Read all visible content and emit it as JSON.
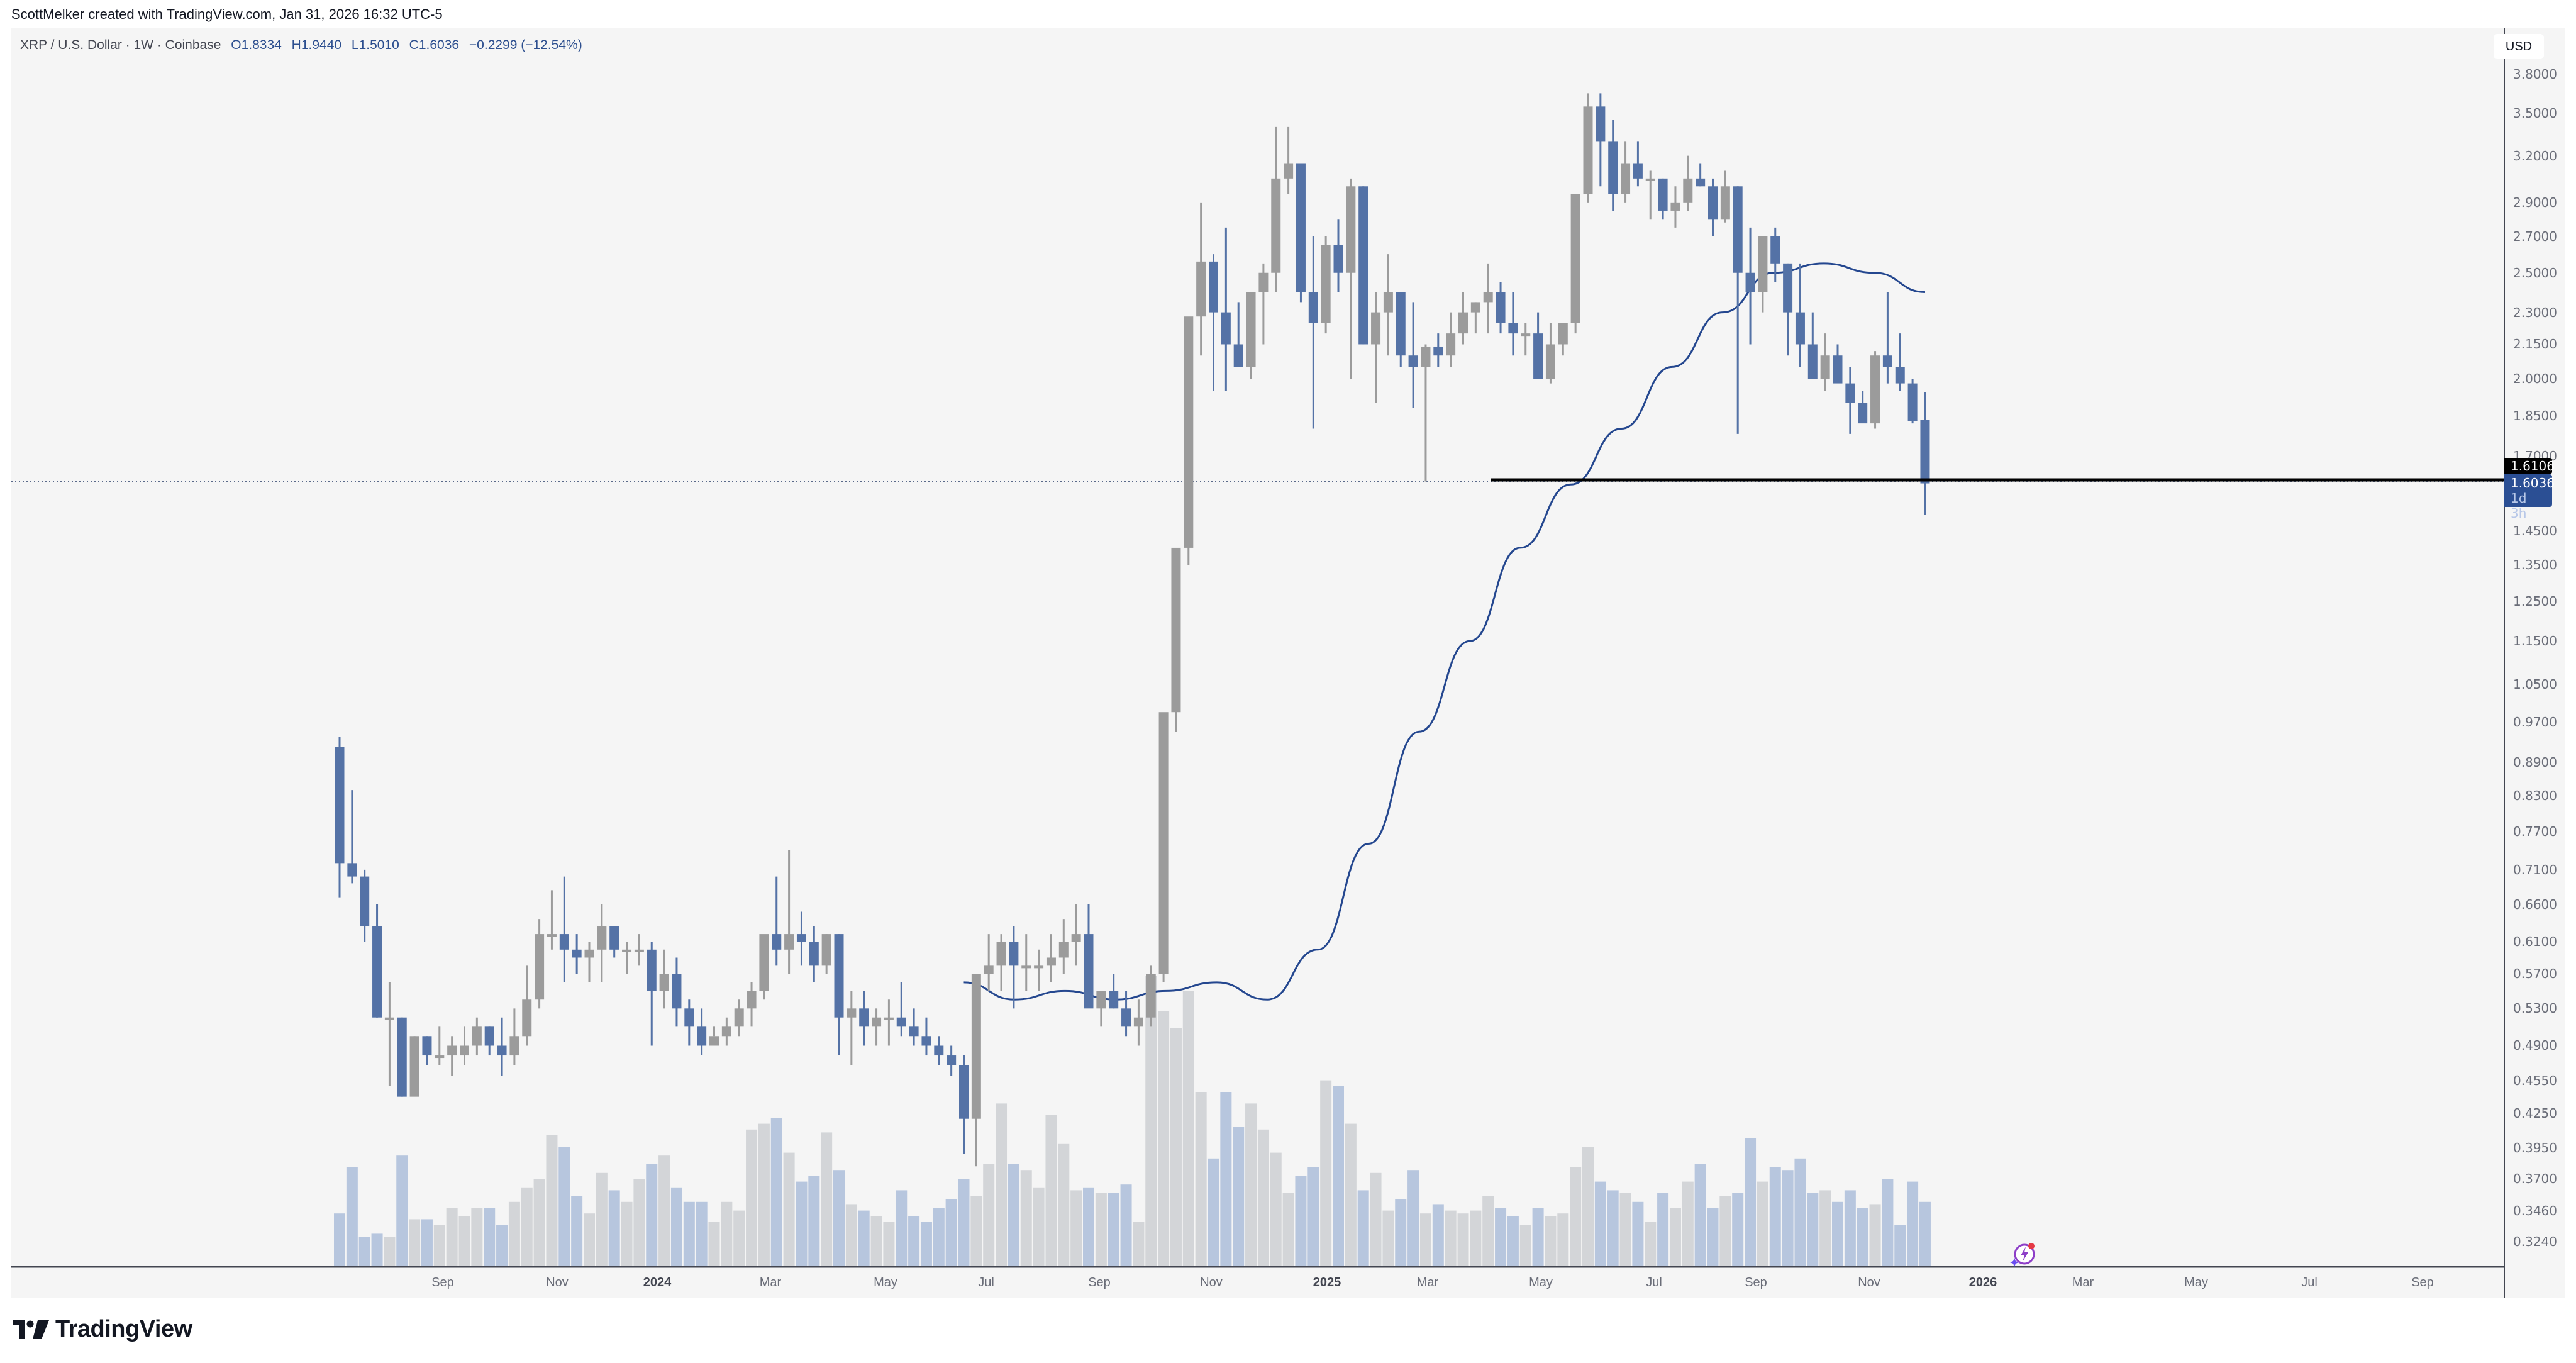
{
  "header": {
    "credit": "ScottMelker created with TradingView.com, Jan 31, 2026 16:32 UTC-5"
  },
  "legend": {
    "symbol": "XRP / U.S. Dollar · 1W · Coinbase",
    "open_label": "O",
    "open": "1.8334",
    "high_label": "H",
    "high": "1.9440",
    "low_label": "L",
    "low": "1.5010",
    "close_label": "C",
    "close": "1.6036",
    "change": "−0.2299 (−12.54%)"
  },
  "price_axis": {
    "currency": "USD",
    "ticks": [
      "3.8000",
      "3.5000",
      "3.2000",
      "2.9000",
      "2.7000",
      "2.5000",
      "2.3000",
      "2.1500",
      "2.0000",
      "1.8500",
      "1.7000",
      "1.4500",
      "1.3500",
      "1.2500",
      "1.1500",
      "1.0500",
      "0.9700",
      "0.8900",
      "0.8300",
      "0.7700",
      "0.7100",
      "0.6600",
      "0.6100",
      "0.5700",
      "0.5300",
      "0.4900",
      "0.4550",
      "0.4250",
      "0.3950",
      "0.3700",
      "0.3460",
      "0.3240"
    ],
    "line_tag": "1.6106",
    "last_price_tag": "1.6036",
    "countdown": "1d 3h"
  },
  "time_axis": {
    "labels": [
      {
        "text": "Sep",
        "x": 704,
        "year": false
      },
      {
        "text": "Nov",
        "x": 886,
        "year": false
      },
      {
        "text": "2024",
        "x": 1045,
        "year": true
      },
      {
        "text": "Mar",
        "x": 1225,
        "year": false
      },
      {
        "text": "May",
        "x": 1408,
        "year": false
      },
      {
        "text": "Jul",
        "x": 1568,
        "year": false
      },
      {
        "text": "Sep",
        "x": 1748,
        "year": false
      },
      {
        "text": "Nov",
        "x": 1926,
        "year": false
      },
      {
        "text": "2025",
        "x": 2110,
        "year": true
      },
      {
        "text": "Mar",
        "x": 2270,
        "year": false
      },
      {
        "text": "May",
        "x": 2450,
        "year": false
      },
      {
        "text": "Jul",
        "x": 2630,
        "year": false
      },
      {
        "text": "Sep",
        "x": 2792,
        "year": false
      },
      {
        "text": "Nov",
        "x": 2972,
        "year": false
      },
      {
        "text": "2026",
        "x": 3153,
        "year": true
      },
      {
        "text": "Mar",
        "x": 3312,
        "year": false
      },
      {
        "text": "May",
        "x": 3492,
        "year": false
      },
      {
        "text": "Jul",
        "x": 3672,
        "year": false
      },
      {
        "text": "Sep",
        "x": 3852,
        "year": false
      }
    ]
  },
  "colors": {
    "background": "#f5f5f5",
    "up_candle": "#9b9b9b",
    "down_candle": "#5472a6",
    "up_volume": "#d3d5d8",
    "down_volume": "#b7c6de",
    "ma_line": "#24478f",
    "support_line": "#000000"
  },
  "branding": {
    "logo_text": "TradingView"
  },
  "chart_data": {
    "type": "candlestick",
    "title": "XRP / U.S. Dollar · 1W · Coinbase",
    "scale": "log",
    "ylabel": "USD",
    "ylim": [
      0.31,
      3.95
    ],
    "grid": false,
    "x_start": "2023-07",
    "x_end": "2026-01-31",
    "support_line": {
      "price": 1.6106,
      "from": "2025-04"
    },
    "moving_average": {
      "from": "2024-06",
      "to": "2026-01",
      "approx_values": [
        0.56,
        0.54,
        0.55,
        0.54,
        0.55,
        0.56,
        0.54,
        0.6,
        0.75,
        0.95,
        1.15,
        1.4,
        1.6,
        1.8,
        2.05,
        2.3,
        2.5,
        2.55,
        2.5,
        2.4
      ]
    },
    "candles": [
      [
        0.92,
        0.94,
        0.67,
        0.72
      ],
      [
        0.72,
        0.84,
        0.69,
        0.7
      ],
      [
        0.7,
        0.71,
        0.61,
        0.63
      ],
      [
        0.63,
        0.66,
        0.52,
        0.52
      ],
      [
        0.52,
        0.56,
        0.45,
        0.52
      ],
      [
        0.52,
        0.52,
        0.44,
        0.44
      ],
      [
        0.44,
        0.5,
        0.48,
        0.5
      ],
      [
        0.5,
        0.5,
        0.47,
        0.48
      ],
      [
        0.48,
        0.51,
        0.47,
        0.48
      ],
      [
        0.48,
        0.5,
        0.46,
        0.49
      ],
      [
        0.48,
        0.51,
        0.47,
        0.49
      ],
      [
        0.49,
        0.52,
        0.48,
        0.51
      ],
      [
        0.51,
        0.51,
        0.48,
        0.49
      ],
      [
        0.49,
        0.52,
        0.46,
        0.48
      ],
      [
        0.48,
        0.53,
        0.47,
        0.5
      ],
      [
        0.5,
        0.58,
        0.49,
        0.54
      ],
      [
        0.54,
        0.64,
        0.53,
        0.62
      ],
      [
        0.62,
        0.68,
        0.6,
        0.62
      ],
      [
        0.62,
        0.7,
        0.56,
        0.6
      ],
      [
        0.6,
        0.62,
        0.57,
        0.59
      ],
      [
        0.59,
        0.61,
        0.56,
        0.6
      ],
      [
        0.6,
        0.66,
        0.56,
        0.63
      ],
      [
        0.63,
        0.63,
        0.59,
        0.6
      ],
      [
        0.6,
        0.61,
        0.57,
        0.6
      ],
      [
        0.6,
        0.62,
        0.58,
        0.6
      ],
      [
        0.6,
        0.61,
        0.49,
        0.55
      ],
      [
        0.55,
        0.6,
        0.53,
        0.57
      ],
      [
        0.57,
        0.59,
        0.51,
        0.53
      ],
      [
        0.53,
        0.54,
        0.49,
        0.51
      ],
      [
        0.51,
        0.53,
        0.48,
        0.49
      ],
      [
        0.49,
        0.51,
        0.5,
        0.5
      ],
      [
        0.5,
        0.52,
        0.49,
        0.51
      ],
      [
        0.51,
        0.54,
        0.5,
        0.53
      ],
      [
        0.53,
        0.56,
        0.51,
        0.55
      ],
      [
        0.55,
        0.61,
        0.54,
        0.62
      ],
      [
        0.62,
        0.7,
        0.58,
        0.6
      ],
      [
        0.6,
        0.74,
        0.57,
        0.62
      ],
      [
        0.62,
        0.65,
        0.58,
        0.61
      ],
      [
        0.61,
        0.63,
        0.56,
        0.58
      ],
      [
        0.58,
        0.62,
        0.57,
        0.62
      ],
      [
        0.62,
        0.62,
        0.48,
        0.52
      ],
      [
        0.52,
        0.55,
        0.47,
        0.53
      ],
      [
        0.53,
        0.55,
        0.49,
        0.51
      ],
      [
        0.51,
        0.53,
        0.49,
        0.52
      ],
      [
        0.52,
        0.54,
        0.49,
        0.52
      ],
      [
        0.52,
        0.56,
        0.5,
        0.51
      ],
      [
        0.51,
        0.53,
        0.49,
        0.5
      ],
      [
        0.5,
        0.52,
        0.48,
        0.49
      ],
      [
        0.49,
        0.5,
        0.47,
        0.48
      ],
      [
        0.48,
        0.49,
        0.46,
        0.47
      ],
      [
        0.47,
        0.48,
        0.39,
        0.42
      ],
      [
        0.42,
        0.55,
        0.38,
        0.57
      ],
      [
        0.57,
        0.62,
        0.55,
        0.58
      ],
      [
        0.58,
        0.62,
        0.55,
        0.61
      ],
      [
        0.61,
        0.63,
        0.53,
        0.58
      ],
      [
        0.58,
        0.62,
        0.55,
        0.58
      ],
      [
        0.58,
        0.6,
        0.55,
        0.58
      ],
      [
        0.58,
        0.62,
        0.56,
        0.59
      ],
      [
        0.59,
        0.64,
        0.57,
        0.61
      ],
      [
        0.61,
        0.66,
        0.58,
        0.62
      ],
      [
        0.62,
        0.66,
        0.54,
        0.53
      ],
      [
        0.53,
        0.55,
        0.51,
        0.55
      ],
      [
        0.55,
        0.57,
        0.53,
        0.53
      ],
      [
        0.53,
        0.55,
        0.5,
        0.51
      ],
      [
        0.51,
        0.54,
        0.49,
        0.52
      ],
      [
        0.52,
        0.58,
        0.51,
        0.57
      ],
      [
        0.57,
        0.66,
        0.56,
        0.99
      ],
      [
        0.99,
        1.12,
        0.95,
        1.4
      ],
      [
        1.4,
        1.7,
        1.35,
        2.28
      ],
      [
        2.28,
        2.9,
        2.1,
        2.56
      ],
      [
        2.56,
        2.6,
        1.95,
        2.3
      ],
      [
        2.3,
        2.75,
        1.95,
        2.15
      ],
      [
        2.15,
        2.35,
        2.1,
        2.05
      ],
      [
        2.05,
        2.4,
        2.0,
        2.4
      ],
      [
        2.4,
        2.55,
        2.15,
        2.5
      ],
      [
        2.5,
        3.4,
        2.4,
        3.05
      ],
      [
        3.05,
        3.4,
        2.95,
        3.15
      ],
      [
        3.15,
        3.1,
        2.35,
        2.4
      ],
      [
        2.4,
        2.7,
        1.8,
        2.25
      ],
      [
        2.25,
        2.7,
        2.2,
        2.65
      ],
      [
        2.65,
        2.8,
        2.4,
        2.5
      ],
      [
        2.5,
        3.05,
        2.0,
        3.0
      ],
      [
        3.0,
        3.0,
        2.15,
        2.15
      ],
      [
        2.15,
        2.4,
        1.9,
        2.3
      ],
      [
        2.3,
        2.6,
        2.1,
        2.4
      ],
      [
        2.4,
        2.4,
        2.05,
        2.1
      ],
      [
        2.1,
        2.35,
        1.88,
        2.05
      ],
      [
        2.05,
        2.15,
        1.61,
        2.14
      ],
      [
        2.14,
        2.2,
        2.05,
        2.1
      ],
      [
        2.1,
        2.3,
        2.05,
        2.2
      ],
      [
        2.2,
        2.4,
        2.15,
        2.3
      ],
      [
        2.3,
        2.35,
        2.2,
        2.35
      ],
      [
        2.35,
        2.55,
        2.2,
        2.4
      ],
      [
        2.4,
        2.45,
        2.2,
        2.25
      ],
      [
        2.25,
        2.4,
        2.1,
        2.2
      ],
      [
        2.2,
        2.25,
        2.1,
        2.2
      ],
      [
        2.2,
        2.3,
        2.0,
        2.0
      ],
      [
        2.0,
        2.25,
        1.98,
        2.15
      ],
      [
        2.15,
        2.25,
        2.1,
        2.25
      ],
      [
        2.25,
        2.85,
        2.2,
        2.95
      ],
      [
        2.95,
        3.65,
        2.9,
        3.55
      ],
      [
        3.55,
        3.65,
        3.0,
        3.3
      ],
      [
        3.3,
        3.45,
        2.85,
        2.95
      ],
      [
        2.95,
        3.3,
        2.9,
        3.15
      ],
      [
        3.15,
        3.3,
        3.0,
        3.05
      ],
      [
        3.05,
        3.1,
        2.8,
        3.05
      ],
      [
        3.05,
        3.05,
        2.8,
        2.85
      ],
      [
        2.85,
        3.0,
        2.75,
        2.9
      ],
      [
        2.9,
        3.2,
        2.85,
        3.05
      ],
      [
        3.05,
        3.15,
        3.0,
        3.0
      ],
      [
        3.0,
        3.05,
        2.7,
        2.8
      ],
      [
        2.8,
        3.1,
        2.78,
        3.0
      ],
      [
        3.0,
        3.0,
        1.78,
        2.5
      ],
      [
        2.5,
        2.75,
        2.15,
        2.4
      ],
      [
        2.4,
        2.7,
        2.3,
        2.7
      ],
      [
        2.7,
        2.75,
        2.45,
        2.55
      ],
      [
        2.55,
        2.55,
        2.1,
        2.3
      ],
      [
        2.3,
        2.55,
        2.05,
        2.15
      ],
      [
        2.15,
        2.3,
        2.0,
        2.0
      ],
      [
        2.0,
        2.2,
        1.95,
        2.1
      ],
      [
        2.1,
        2.15,
        2.0,
        1.98
      ],
      [
        1.98,
        2.05,
        1.78,
        1.9
      ],
      [
        1.9,
        1.95,
        1.85,
        1.82
      ],
      [
        1.82,
        2.12,
        1.8,
        2.1
      ],
      [
        2.1,
        2.4,
        1.98,
        2.05
      ],
      [
        2.05,
        2.2,
        1.95,
        1.98
      ],
      [
        1.98,
        2.0,
        1.82,
        1.83
      ],
      [
        1.8334,
        1.944,
        1.501,
        1.6036
      ]
    ],
    "volume_relative": [
      0.18,
      0.34,
      0.1,
      0.11,
      0.1,
      0.38,
      0.16,
      0.16,
      0.14,
      0.2,
      0.17,
      0.2,
      0.2,
      0.14,
      0.22,
      0.27,
      0.3,
      0.45,
      0.41,
      0.24,
      0.18,
      0.32,
      0.26,
      0.22,
      0.3,
      0.35,
      0.38,
      0.27,
      0.22,
      0.22,
      0.15,
      0.22,
      0.19,
      0.47,
      0.49,
      0.51,
      0.39,
      0.29,
      0.31,
      0.46,
      0.33,
      0.21,
      0.19,
      0.17,
      0.15,
      0.26,
      0.17,
      0.15,
      0.2,
      0.23,
      0.3,
      0.24,
      0.35,
      0.56,
      0.35,
      0.33,
      0.27,
      0.52,
      0.42,
      0.26,
      0.27,
      0.25,
      0.25,
      0.28,
      0.15,
      1.0,
      0.88,
      0.82,
      0.95,
      0.6,
      0.37,
      0.6,
      0.48,
      0.56,
      0.47,
      0.39,
      0.25,
      0.31,
      0.34,
      0.64,
      0.62,
      0.49,
      0.26,
      0.32,
      0.19,
      0.23,
      0.33,
      0.18,
      0.21,
      0.19,
      0.18,
      0.19,
      0.24,
      0.2,
      0.17,
      0.14,
      0.2,
      0.17,
      0.18,
      0.34,
      0.41,
      0.29,
      0.26,
      0.25,
      0.22,
      0.15,
      0.25,
      0.2,
      0.29,
      0.35,
      0.2,
      0.24,
      0.25,
      0.44,
      0.29,
      0.34,
      0.33,
      0.37,
      0.25,
      0.26,
      0.22,
      0.26,
      0.2,
      0.21,
      0.3,
      0.14,
      0.29,
      0.22,
      0.25,
      0.28
    ]
  }
}
